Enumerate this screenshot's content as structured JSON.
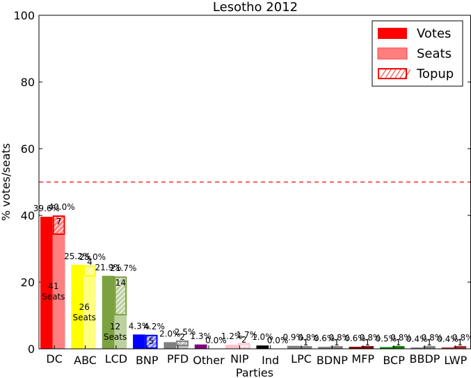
{
  "chart_data": {
    "type": "bar",
    "title": "Lesotho 2012",
    "xlabel": "Parties",
    "ylabel": "% votes/seats",
    "ylim": [
      0,
      100
    ],
    "yticks": [
      "0",
      "20",
      "40",
      "60",
      "80",
      "100"
    ],
    "majority_line": 50,
    "legend": {
      "placement": "top-right",
      "entries": [
        "Votes",
        "Seats",
        "Topup"
      ]
    },
    "seats_word": "Seats",
    "categories": [
      "DC",
      "ABC",
      "LCD",
      "BNP",
      "PFD",
      "Other",
      "NIP",
      "Ind",
      "LPC",
      "BDNP",
      "MFP",
      "BCP",
      "BBDP",
      "LWP"
    ],
    "colors": [
      "#ff0000",
      "#ffff00",
      "#7ba23f",
      "#0000ff",
      "#808080",
      "#800080",
      "#ffc0cb",
      "#000000",
      "#808080",
      "#808080",
      "#800000",
      "#008000",
      "#808080",
      "#a52a2a"
    ],
    "votes_pct": [
      39.6,
      25.2,
      21.9,
      4.3,
      2.0,
      1.3,
      1.2,
      1.0,
      0.9,
      0.6,
      0.6,
      0.5,
      0.4,
      0.4
    ],
    "votes_label": [
      "39.6%",
      "25.2%",
      "21.9%",
      "4.3%",
      "2.0%",
      "1.3%",
      "1.2%",
      "1.0%",
      "0.9%",
      "0.6%",
      "0.6%",
      "0.5%",
      "0.4%",
      "0.4%"
    ],
    "seats_pct": [
      40.0,
      25.0,
      21.7,
      4.2,
      2.5,
      0.0,
      1.7,
      0.0,
      0.8,
      0.8,
      0.8,
      0.8,
      0.8,
      0.8
    ],
    "seats_label": [
      "40.0%",
      "25.0%",
      "21.7%",
      "4.2%",
      "2.5%",
      "0.0%",
      "1.7%",
      "0.0%",
      "0.8%",
      "0.8%",
      "0.8%",
      "0.8%",
      "0.8%",
      "0.8%"
    ],
    "constituency_seats": [
      41,
      26,
      12,
      0,
      1,
      0,
      0,
      0,
      0,
      0,
      0,
      0,
      0,
      0
    ],
    "constituency_label": [
      "41",
      "26",
      "12",
      "",
      "",
      "",
      "",
      "",
      "",
      "",
      "",
      "",
      "",
      ""
    ],
    "topup_seats": [
      7,
      4,
      14,
      5,
      2,
      0,
      2,
      0,
      1,
      1,
      1,
      1,
      1,
      1
    ],
    "topup_label": [
      "7",
      "4",
      "14",
      "5",
      "2",
      "",
      "2",
      "",
      "1",
      "1",
      "1",
      "1",
      "1",
      "1"
    ]
  }
}
